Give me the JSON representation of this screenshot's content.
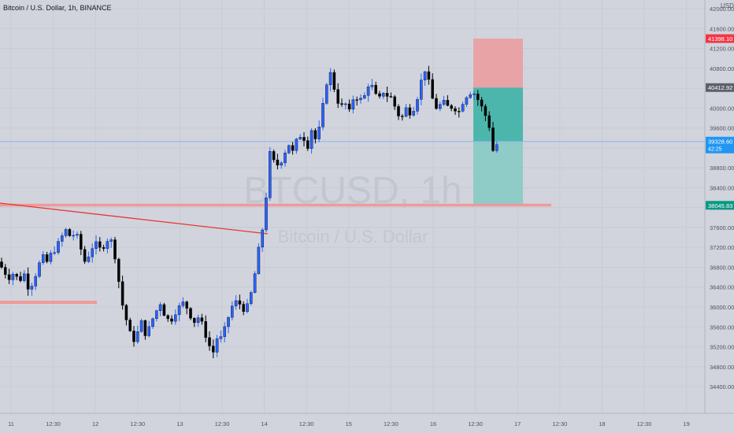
{
  "header": {
    "title": "Bitcoin / U.S. Dollar, 1h, BINANCE",
    "currency": "USD"
  },
  "watermark": {
    "symbol": "BTCUSD, 1h",
    "name": "Bitcoin / U.S. Dollar"
  },
  "colors": {
    "background": "#d1d4dc",
    "up_candle": "#2962ff",
    "down_candle": "#000000",
    "trendline": "#e53935",
    "support": "#ef9a9a",
    "stop_zone": "#e8a3a6",
    "target_zone": "#4db6ac",
    "target_zone_light": "#8fcbc7",
    "current_price_line": "#90b4f0"
  },
  "chart_data": {
    "type": "candlestick",
    "interval": "1h",
    "ylim": [
      34100,
      42000
    ],
    "y_ticks": [
      42000,
      41600,
      41200,
      40800,
      40400,
      40000,
      39600,
      39200,
      38800,
      38400,
      38000,
      37600,
      37200,
      36800,
      36400,
      36000,
      35600,
      35200,
      34800,
      34400
    ],
    "x_ticks": [
      "11",
      "12:30",
      "12",
      "12:30",
      "13",
      "12:30",
      "14",
      "12:30",
      "15",
      "12:30",
      "16",
      "12:30",
      "17",
      "12:30",
      "18",
      "12:30",
      "19"
    ],
    "price_labels": {
      "stop_loss": "41398.10",
      "entry": "40412.92",
      "current": "39328.60",
      "countdown": "42:25",
      "take_profit": "38045.83"
    },
    "close_path": [
      [
        0,
        36850
      ],
      [
        6,
        36700
      ],
      [
        12,
        36600
      ],
      [
        18,
        36700
      ],
      [
        24,
        36500
      ],
      [
        30,
        36700
      ],
      [
        36,
        36400
      ],
      [
        42,
        36500
      ],
      [
        48,
        36800
      ],
      [
        54,
        37000
      ],
      [
        60,
        36900
      ],
      [
        66,
        37100
      ],
      [
        72,
        37200
      ],
      [
        78,
        37400
      ],
      [
        84,
        37550
      ],
      [
        90,
        37400
      ],
      [
        96,
        37500
      ],
      [
        102,
        37200
      ],
      [
        108,
        36900
      ],
      [
        114,
        37100
      ],
      [
        120,
        37300
      ],
      [
        126,
        37150
      ],
      [
        132,
        37250
      ],
      [
        138,
        37400
      ],
      [
        144,
        37250
      ],
      [
        150,
        36600
      ],
      [
        156,
        36000
      ],
      [
        162,
        35650
      ],
      [
        168,
        35300
      ],
      [
        174,
        35450
      ],
      [
        180,
        35700
      ],
      [
        186,
        35400
      ],
      [
        192,
        35700
      ],
      [
        198,
        35900
      ],
      [
        204,
        36100
      ],
      [
        210,
        35800
      ],
      [
        216,
        35700
      ],
      [
        222,
        35900
      ],
      [
        228,
        36000
      ],
      [
        234,
        36100
      ],
      [
        240,
        35900
      ],
      [
        246,
        35700
      ],
      [
        252,
        35800
      ],
      [
        258,
        35600
      ],
      [
        264,
        35300
      ],
      [
        270,
        35050
      ],
      [
        276,
        35400
      ],
      [
        282,
        35350
      ],
      [
        288,
        35700
      ],
      [
        294,
        36000
      ],
      [
        300,
        36100
      ],
      [
        306,
        36050
      ],
      [
        312,
        35900
      ],
      [
        318,
        36200
      ],
      [
        324,
        36700
      ],
      [
        330,
        37300
      ],
      [
        336,
        37800
      ],
      [
        342,
        39100
      ],
      [
        348,
        38900
      ],
      [
        354,
        38850
      ],
      [
        360,
        39050
      ],
      [
        366,
        39300
      ],
      [
        372,
        39100
      ],
      [
        378,
        39400
      ],
      [
        384,
        39500
      ],
      [
        390,
        39200
      ],
      [
        396,
        39600
      ],
      [
        402,
        39300
      ],
      [
        408,
        39800
      ],
      [
        414,
        40500
      ],
      [
        420,
        40700
      ],
      [
        426,
        40300
      ],
      [
        432,
        40000
      ],
      [
        438,
        40100
      ],
      [
        444,
        39900
      ],
      [
        450,
        40300
      ],
      [
        456,
        40150
      ],
      [
        462,
        40200
      ],
      [
        468,
        40500
      ],
      [
        474,
        40400
      ],
      [
        480,
        40100
      ],
      [
        486,
        40350
      ],
      [
        492,
        40250
      ],
      [
        498,
        40200
      ],
      [
        504,
        39900
      ],
      [
        510,
        39800
      ],
      [
        516,
        40000
      ],
      [
        522,
        39900
      ],
      [
        528,
        40100
      ],
      [
        534,
        40500
      ],
      [
        540,
        40800
      ],
      [
        546,
        40400
      ],
      [
        552,
        40000
      ],
      [
        558,
        40050
      ],
      [
        564,
        40100
      ],
      [
        570,
        40000
      ],
      [
        576,
        40050
      ],
      [
        582,
        39900
      ],
      [
        588,
        40150
      ],
      [
        594,
        40300
      ],
      [
        600,
        40350
      ],
      [
        606,
        40200
      ],
      [
        612,
        40000
      ],
      [
        618,
        39800
      ],
      [
        622,
        39600
      ],
      [
        626,
        39150
      ],
      [
        630,
        39250
      ],
      [
        634,
        39328.6
      ]
    ]
  },
  "x_axis_label_offsets_note": ""
}
